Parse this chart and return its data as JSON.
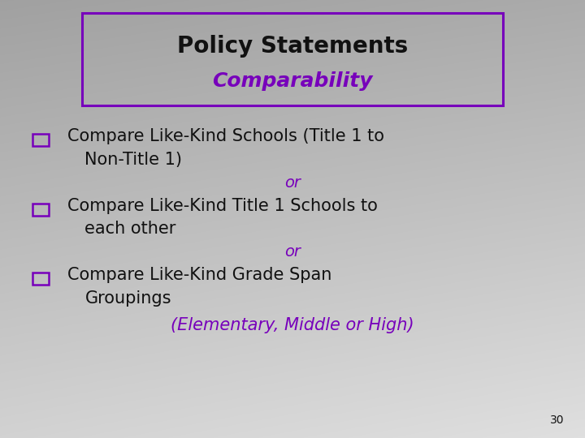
{
  "title_line1": "Policy Statements",
  "title_line2": "Comparability",
  "title_line1_color": "#111111",
  "title_line2_color": "#7700bb",
  "box_color": "#7700bb",
  "bullet_color": "#7700bb",
  "black_text_color": "#111111",
  "purple_text_color": "#7700bb",
  "or_color": "#7700bb",
  "slide_number": "30",
  "title1_fontsize": 20,
  "title2_fontsize": 18,
  "body_fontsize": 15,
  "or_fontsize": 14,
  "bullet_fontsize": 13,
  "slide_num_fontsize": 10
}
